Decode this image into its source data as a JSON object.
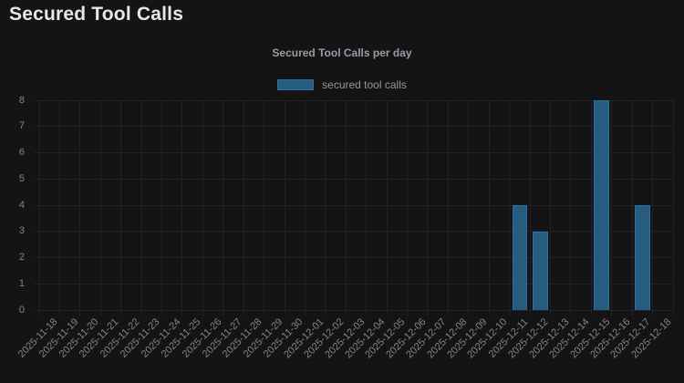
{
  "page": {
    "title": "Secured Tool Calls",
    "background_color": "#141416"
  },
  "chart_data": {
    "type": "bar",
    "title": "Secured Tool Calls per day",
    "categories": [
      "2025-11-18",
      "2025-11-19",
      "2025-11-20",
      "2025-11-21",
      "2025-11-22",
      "2025-11-23",
      "2025-11-24",
      "2025-11-25",
      "2025-11-26",
      "2025-11-27",
      "2025-11-28",
      "2025-11-29",
      "2025-11-30",
      "2025-12-01",
      "2025-12-02",
      "2025-12-03",
      "2025-12-04",
      "2025-12-05",
      "2025-12-06",
      "2025-12-07",
      "2025-12-08",
      "2025-12-09",
      "2025-12-10",
      "2025-12-11",
      "2025-12-12",
      "2025-12-13",
      "2025-12-14",
      "2025-12-15",
      "2025-12-16",
      "2025-12-17",
      "2025-12-18"
    ],
    "series": [
      {
        "name": "secured tool calls",
        "values": [
          0,
          0,
          0,
          0,
          0,
          0,
          0,
          0,
          0,
          0,
          0,
          0,
          0,
          0,
          0,
          0,
          0,
          0,
          0,
          0,
          0,
          0,
          0,
          4,
          3,
          0,
          0,
          8,
          0,
          4,
          0
        ]
      }
    ],
    "xlabel": "",
    "ylabel": "",
    "ylim": [
      0,
      8
    ],
    "yticks": [
      0,
      1,
      2,
      3,
      4,
      5,
      6,
      7,
      8
    ],
    "grid": true,
    "legend_position": "top",
    "colors": {
      "bar_fill": "#255c80",
      "bar_border": "#2f6f9f",
      "grid_line": "#212126",
      "tick_text": "#84848a",
      "chart_title_text": "#9b9ba1",
      "legend_text": "#96969b",
      "page_title_text": "#e7e7ea"
    }
  }
}
